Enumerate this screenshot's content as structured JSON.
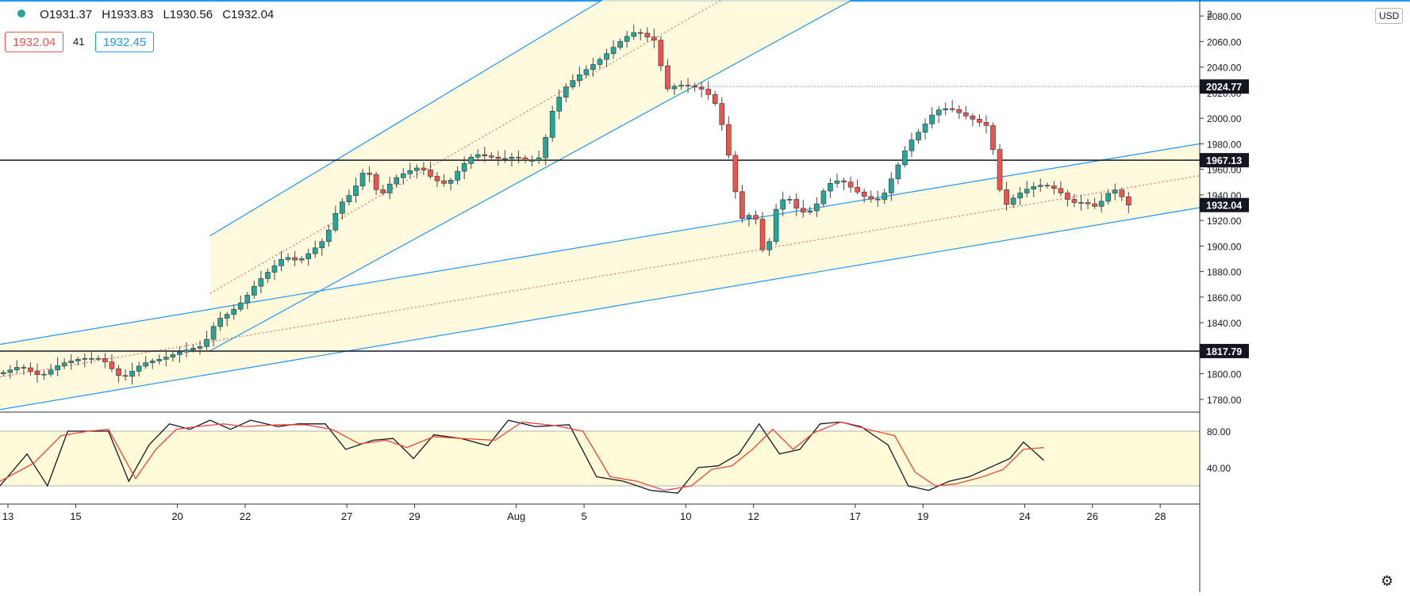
{
  "header": {
    "ohlc": {
      "open": "O1931.37",
      "high": "H1933.83",
      "low": "L1930.56",
      "close": "C1932.04"
    },
    "bid": "1932.04",
    "spread": "41",
    "ask": "1932.45",
    "currency": "USD"
  },
  "colors": {
    "up": "#26a69a",
    "down": "#ef5350",
    "channel": "#2196f3",
    "channel_fill": "#fff9d6",
    "median": "#ef5350",
    "stoch_k": "#131722",
    "stoch_d": "#f44336",
    "stoch_band": "#fffbd9",
    "top_bar": "#2196f3"
  },
  "chart_data": [
    {
      "type": "candlestick",
      "x_tick_labels": [
        {
          "label": "13",
          "x": 0
        },
        {
          "label": "15",
          "x": 10
        },
        {
          "label": "20",
          "x": 25
        },
        {
          "label": "22",
          "x": 35
        },
        {
          "label": "27",
          "x": 50
        },
        {
          "label": "29",
          "x": 60
        },
        {
          "label": "Aug",
          "x": 75
        },
        {
          "label": "5",
          "x": 85
        },
        {
          "label": "10",
          "x": 100
        },
        {
          "label": "12",
          "x": 110
        },
        {
          "label": "17",
          "x": 125
        },
        {
          "label": "19",
          "x": 135
        },
        {
          "label": "24",
          "x": 150
        },
        {
          "label": "26",
          "x": 160
        },
        {
          "label": "28",
          "x": 170
        }
      ],
      "y_ticks": [
        1780,
        1800,
        1820,
        1840,
        1860,
        1880,
        1900,
        1920,
        1940,
        1960,
        1980,
        2000,
        2020,
        2040,
        2060,
        2080
      ],
      "y_tick_labels": [
        "1780.00",
        "1800.00",
        "1820.00",
        "1840.00",
        "1860.00",
        "1880.00",
        "1900.00",
        "1920.00",
        "1940.00",
        "1960.00",
        "1980.00",
        "2000.00",
        "2020.00",
        "2040.00",
        "2060.00",
        "2080.00"
      ],
      "top_tick_label": "2",
      "ylim": [
        1770,
        2090
      ],
      "xlim": [
        0,
        177
      ],
      "price_labels": [
        {
          "value": 2024.77,
          "label": "2024.77",
          "style": "dotted"
        },
        {
          "value": 1967.13,
          "label": "1967.13",
          "style": "solid"
        },
        {
          "value": 1932.04,
          "label": "1932.04",
          "style": "current"
        },
        {
          "value": 1817.79,
          "label": "1817.79",
          "style": "solid"
        }
      ],
      "horizontal_lines": [
        1967.13,
        1817.79
      ],
      "dotted_line": {
        "value": 2024.77,
        "from_x": 103
      },
      "channels": [
        {
          "name": "",
          "lower": [
            [
              0,
              1772
            ],
            [
              177,
              1930
            ]
          ],
          "upper": [
            [
              0,
              1823
            ],
            [
              177,
              1980
            ]
          ],
          "fill_from_x": 0
        },
        {
          "name": "",
          "lower": [
            [
              31,
              1818
            ],
            [
              100,
              2018
            ]
          ],
          "upper": [
            [
              31,
              1908
            ],
            [
              100,
              2128
            ]
          ],
          "fill_from_x": 31
        }
      ],
      "pivots": [
        [
          0,
          1800
        ],
        [
          3,
          1806
        ],
        [
          6,
          1798
        ],
        [
          9,
          1808
        ],
        [
          12,
          1812
        ],
        [
          15,
          1812
        ],
        [
          18,
          1796
        ],
        [
          21,
          1808
        ],
        [
          24,
          1812
        ],
        [
          27,
          1818
        ],
        [
          30,
          1822
        ],
        [
          32,
          1842
        ],
        [
          34,
          1848
        ],
        [
          36,
          1858
        ],
        [
          38,
          1872
        ],
        [
          40,
          1882
        ],
        [
          42,
          1892
        ],
        [
          44,
          1888
        ],
        [
          46,
          1896
        ],
        [
          48,
          1906
        ],
        [
          50,
          1932
        ],
        [
          52,
          1942
        ],
        [
          54,
          1962
        ],
        [
          56,
          1938
        ],
        [
          58,
          1952
        ],
        [
          60,
          1958
        ],
        [
          62,
          1962
        ],
        [
          64,
          1952
        ],
        [
          66,
          1948
        ],
        [
          68,
          1962
        ],
        [
          70,
          1972
        ],
        [
          72,
          1970
        ],
        [
          74,
          1968
        ],
        [
          76,
          1970
        ],
        [
          78,
          1966
        ],
        [
          80,
          1970
        ],
        [
          81,
          2000
        ],
        [
          83,
          2022
        ],
        [
          85,
          2032
        ],
        [
          87,
          2040
        ],
        [
          89,
          2048
        ],
        [
          91,
          2058
        ],
        [
          93,
          2066
        ],
        [
          94,
          2068
        ],
        [
          96,
          2062
        ],
        [
          97,
          2060
        ],
        [
          98,
          2022
        ],
        [
          100,
          2026
        ],
        [
          102,
          2025
        ],
        [
          104,
          2022
        ],
        [
          106,
          2008
        ],
        [
          107,
          1982
        ],
        [
          108,
          1960
        ],
        [
          109,
          1925
        ],
        [
          110,
          1918
        ],
        [
          111,
          1930
        ],
        [
          112,
          1912
        ],
        [
          113,
          1882
        ],
        [
          114,
          1925
        ],
        [
          116,
          1940
        ],
        [
          118,
          1926
        ],
        [
          120,
          1928
        ],
        [
          122,
          1948
        ],
        [
          124,
          1952
        ],
        [
          126,
          1944
        ],
        [
          128,
          1937
        ],
        [
          130,
          1936
        ],
        [
          132,
          1958
        ],
        [
          134,
          1980
        ],
        [
          136,
          1992
        ],
        [
          138,
          2006
        ],
        [
          140,
          2008
        ],
        [
          142,
          2003
        ],
        [
          144,
          1998
        ],
        [
          146,
          1993
        ],
        [
          147,
          1958
        ],
        [
          148,
          1930
        ],
        [
          150,
          1940
        ],
        [
          152,
          1946
        ],
        [
          154,
          1948
        ],
        [
          156,
          1944
        ],
        [
          158,
          1934
        ],
        [
          160,
          1934
        ],
        [
          162,
          1930
        ],
        [
          163,
          1940
        ],
        [
          165,
          1945
        ],
        [
          166,
          1932
        ]
      ]
    },
    {
      "type": "line",
      "title": "",
      "y_ticks": [
        40,
        80
      ],
      "y_tick_labels": [
        "40.00",
        "80.00"
      ],
      "ylim": [
        0,
        100
      ],
      "band": [
        20,
        80
      ],
      "series": [
        {
          "name": "",
          "color": "#131722",
          "pivots": [
            [
              0,
              20
            ],
            [
              4,
              55
            ],
            [
              7,
              20
            ],
            [
              10,
              80
            ],
            [
              13,
              80
            ],
            [
              16,
              80
            ],
            [
              19,
              25
            ],
            [
              22,
              65
            ],
            [
              25,
              88
            ],
            [
              28,
              82
            ],
            [
              31,
              92
            ],
            [
              34,
              82
            ],
            [
              37,
              92
            ],
            [
              41,
              85
            ],
            [
              44,
              88
            ],
            [
              48,
              88
            ],
            [
              51,
              60
            ],
            [
              55,
              70
            ],
            [
              58,
              72
            ],
            [
              61,
              50
            ],
            [
              64,
              76
            ],
            [
              68,
              72
            ],
            [
              72,
              64
            ],
            [
              75,
              92
            ],
            [
              79,
              85
            ],
            [
              84,
              87
            ],
            [
              88,
              30
            ],
            [
              92,
              25
            ],
            [
              96,
              15
            ],
            [
              100,
              12
            ],
            [
              103,
              40
            ],
            [
              106,
              42
            ],
            [
              109,
              55
            ],
            [
              112,
              88
            ],
            [
              115,
              55
            ],
            [
              118,
              60
            ],
            [
              121,
              88
            ],
            [
              124,
              90
            ],
            [
              127,
              85
            ],
            [
              131,
              65
            ],
            [
              134,
              20
            ],
            [
              137,
              15
            ],
            [
              140,
              25
            ],
            [
              143,
              30
            ],
            [
              146,
              40
            ],
            [
              149,
              50
            ],
            [
              151,
              68
            ],
            [
              154,
              48
            ]
          ]
        },
        {
          "name": "",
          "color": "#f44336",
          "pivots": [
            [
              0,
              25
            ],
            [
              5,
              45
            ],
            [
              9,
              75
            ],
            [
              13,
              80
            ],
            [
              16,
              82
            ],
            [
              20,
              28
            ],
            [
              23,
              60
            ],
            [
              26,
              82
            ],
            [
              29,
              85
            ],
            [
              33,
              88
            ],
            [
              36,
              85
            ],
            [
              41,
              87
            ],
            [
              45,
              87
            ],
            [
              49,
              82
            ],
            [
              53,
              66
            ],
            [
              57,
              70
            ],
            [
              60,
              62
            ],
            [
              64,
              74
            ],
            [
              68,
              72
            ],
            [
              73,
              70
            ],
            [
              77,
              90
            ],
            [
              82,
              86
            ],
            [
              86,
              80
            ],
            [
              90,
              30
            ],
            [
              94,
              25
            ],
            [
              98,
              15
            ],
            [
              102,
              20
            ],
            [
              105,
              38
            ],
            [
              108,
              42
            ],
            [
              111,
              60
            ],
            [
              114,
              82
            ],
            [
              117,
              60
            ],
            [
              120,
              78
            ],
            [
              124,
              90
            ],
            [
              128,
              82
            ],
            [
              132,
              75
            ],
            [
              135,
              35
            ],
            [
              138,
              20
            ],
            [
              141,
              22
            ],
            [
              145,
              30
            ],
            [
              148,
              38
            ],
            [
              151,
              60
            ],
            [
              154,
              62
            ]
          ]
        }
      ]
    }
  ]
}
